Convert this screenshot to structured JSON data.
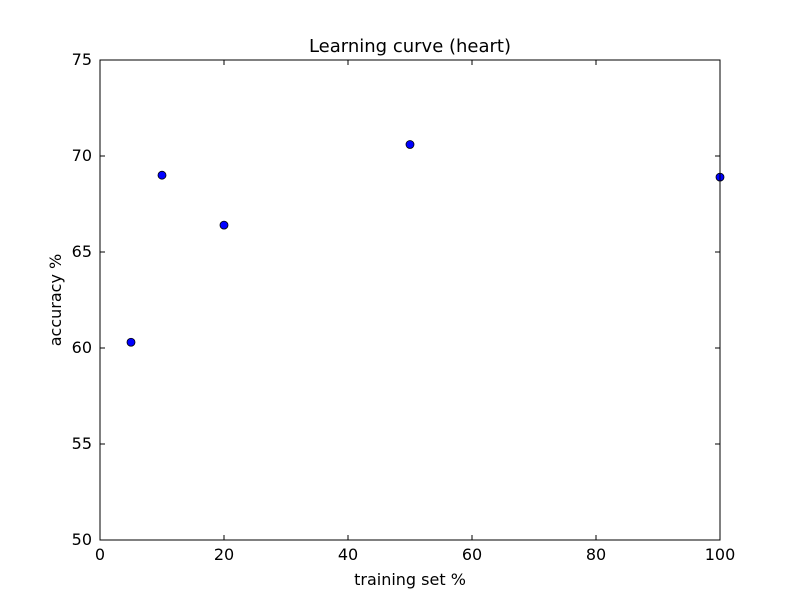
{
  "chart_data": {
    "type": "scatter",
    "title": "Learning curve (heart)",
    "xlabel": "training set %",
    "ylabel": "accuracy %",
    "xlim": [
      0,
      100
    ],
    "ylim": [
      50,
      75
    ],
    "xticks": [
      0,
      20,
      40,
      60,
      80,
      100
    ],
    "yticks": [
      50,
      55,
      60,
      65,
      70,
      75
    ],
    "grid": false,
    "series": [
      {
        "color": "#0000ff",
        "points": [
          {
            "x": 5,
            "y": 60.3
          },
          {
            "x": 10,
            "y": 69.0
          },
          {
            "x": 20,
            "y": 66.4
          },
          {
            "x": 50,
            "y": 70.6
          },
          {
            "x": 100,
            "y": 68.9
          }
        ]
      }
    ]
  }
}
